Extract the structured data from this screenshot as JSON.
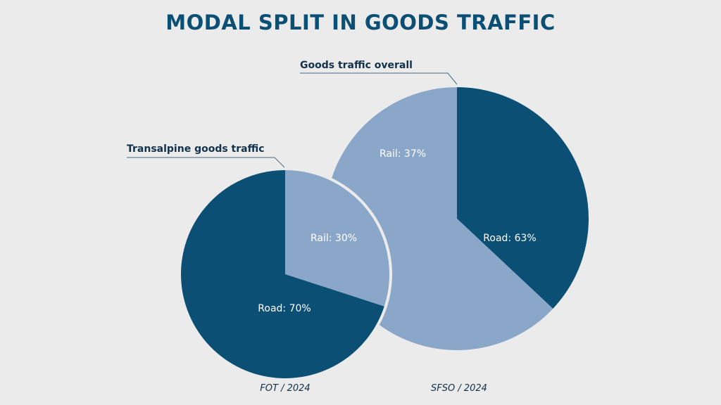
{
  "title": "MODAL SPLIT IN GOODS TRAFFIC",
  "colors": {
    "background": "#ebebeb",
    "dark_blue": "#0b4f74",
    "light_blue": "#8aa7ca",
    "title": "#0b4f74",
    "text": "#12314a"
  },
  "chart_data": [
    {
      "type": "pie",
      "title": "Goods traffic overall",
      "source": "SFSO / 2024",
      "slices": [
        {
          "label": "Rail: 37%",
          "category": "Rail",
          "value": 37,
          "color": "#0b4f74"
        },
        {
          "label": "Road: 63%",
          "category": "Road",
          "value": 63,
          "color": "#8aa7ca"
        }
      ]
    },
    {
      "type": "pie",
      "title": "Transalpine goods traffic",
      "source": "FOT / 2024",
      "slices": [
        {
          "label": "Rail: 30%",
          "category": "Rail",
          "value": 30,
          "color": "#8aa7ca"
        },
        {
          "label": "Road: 70%",
          "category": "Road",
          "value": 70,
          "color": "#0b4f74"
        }
      ]
    }
  ]
}
